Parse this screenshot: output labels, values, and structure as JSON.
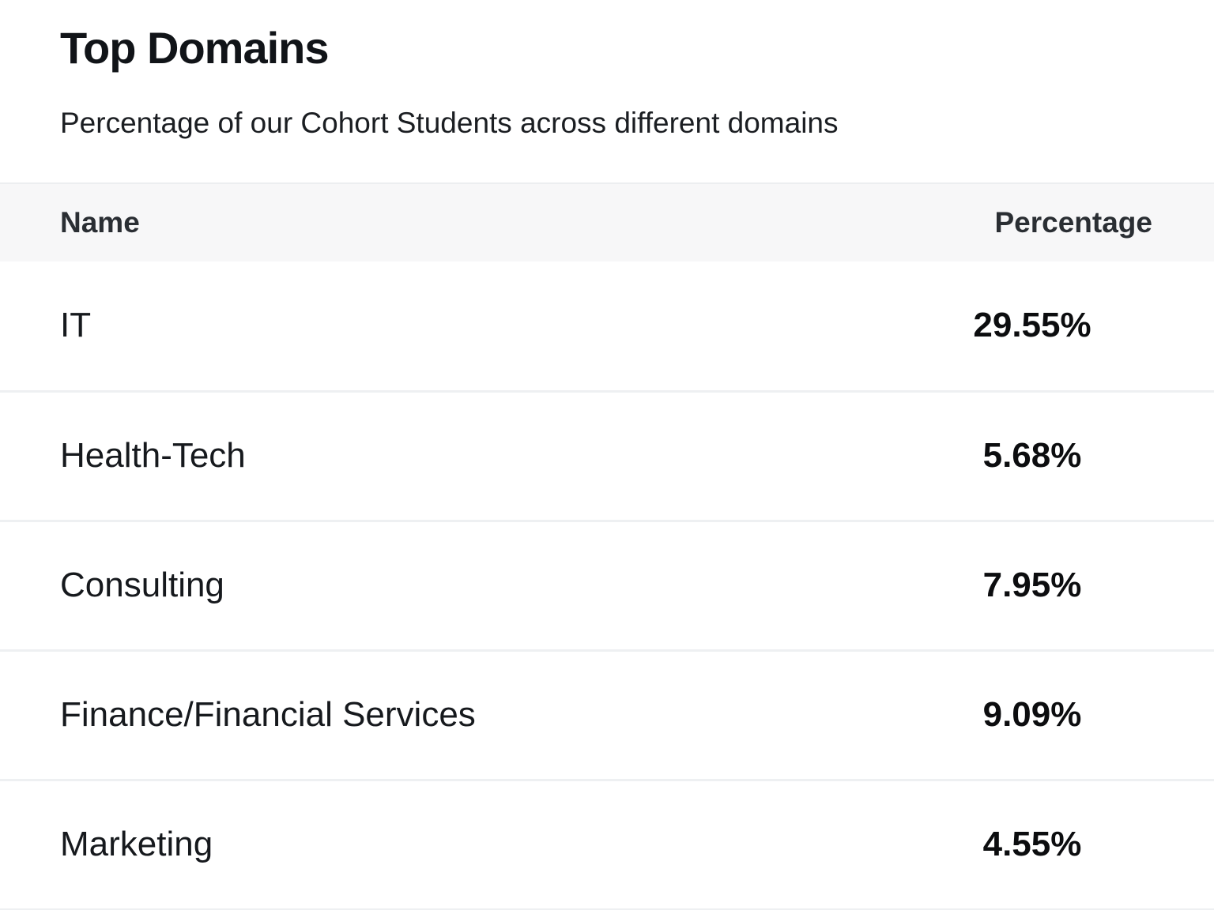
{
  "card": {
    "title": "Top Domains",
    "subtitle": "Percentage of our Cohort Students across different domains"
  },
  "table": {
    "columns": {
      "name": "Name",
      "percentage": "Percentage"
    },
    "rows": [
      {
        "name": "IT",
        "percentage": "29.55%"
      },
      {
        "name": "Health-Tech",
        "percentage": "5.68%"
      },
      {
        "name": "Consulting",
        "percentage": "7.95%"
      },
      {
        "name": "Finance/Financial Services",
        "percentage": "9.09%"
      },
      {
        "name": "Marketing",
        "percentage": "4.55%"
      }
    ]
  }
}
